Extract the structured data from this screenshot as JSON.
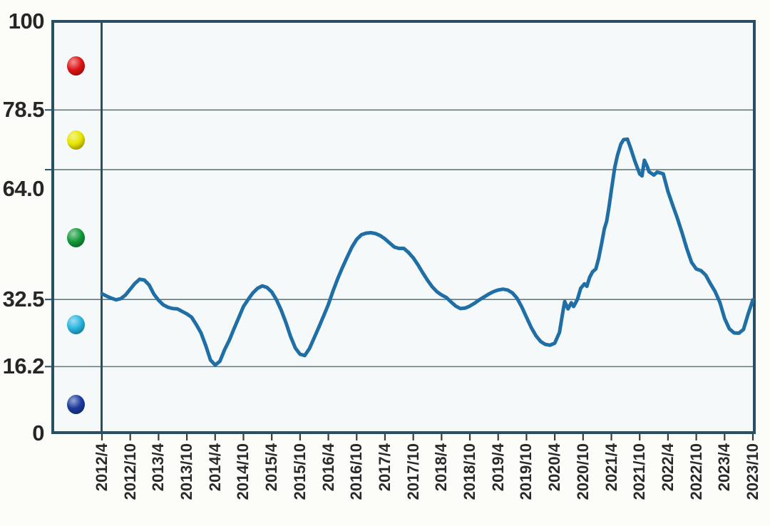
{
  "chart_data": {
    "type": "line",
    "title": "",
    "grid": true,
    "legend_position": "left-sidebar",
    "x_axis": {
      "unit": "months since 2012/4",
      "tick_months": [
        0,
        6,
        12,
        18,
        24,
        30,
        36,
        42,
        48,
        54,
        60,
        66,
        72,
        78,
        84,
        90,
        96,
        102,
        108,
        114,
        120,
        126,
        132,
        138
      ],
      "tick_labels": [
        "2012/4",
        "2012/10",
        "2013/4",
        "2013/10",
        "2014/4",
        "2014/10",
        "2015/4",
        "2015/10",
        "2016/4",
        "2016/10",
        "2017/4",
        "2017/10",
        "2018/4",
        "2018/10",
        "2019/4",
        "2019/10",
        "2020/4",
        "2020/10",
        "2021/4",
        "2021/10",
        "2022/4",
        "2022/10",
        "2023/4",
        "2023/10"
      ]
    },
    "y_axis": {
      "range": [
        0,
        100
      ],
      "tick_labels": [
        "100",
        "78.5",
        "64.0",
        "32.5",
        "16.2",
        "0"
      ],
      "tick_values": [
        100,
        78.5,
        64.0,
        32.5,
        16.2,
        0
      ],
      "gridline_values": [
        78.5,
        64.0,
        32.5,
        16.2
      ]
    },
    "series": [
      {
        "name": "index-line",
        "color": "#1f6fa6",
        "points": [
          [
            0,
            33.9
          ],
          [
            1,
            33.3
          ],
          [
            2,
            32.8
          ],
          [
            3,
            32.4
          ],
          [
            4,
            32.7
          ],
          [
            5,
            33.6
          ],
          [
            6,
            35.0
          ],
          [
            7,
            36.4
          ],
          [
            8,
            37.4
          ],
          [
            9,
            37.2
          ],
          [
            10,
            36.0
          ],
          [
            11,
            33.8
          ],
          [
            12,
            32.3
          ],
          [
            13,
            31.2
          ],
          [
            14,
            30.6
          ],
          [
            15,
            30.3
          ],
          [
            16,
            30.2
          ],
          [
            17,
            29.6
          ],
          [
            18,
            29.0
          ],
          [
            19,
            28.2
          ],
          [
            20,
            26.4
          ],
          [
            21,
            24.4
          ],
          [
            22,
            21.3
          ],
          [
            23,
            17.8
          ],
          [
            24,
            16.6
          ],
          [
            25,
            17.5
          ],
          [
            26,
            20.3
          ],
          [
            27,
            22.6
          ],
          [
            28,
            25.4
          ],
          [
            29,
            28.1
          ],
          [
            30,
            30.8
          ],
          [
            31,
            32.5
          ],
          [
            32,
            34.1
          ],
          [
            33,
            35.2
          ],
          [
            34,
            35.8
          ],
          [
            35,
            35.4
          ],
          [
            36,
            34.3
          ],
          [
            37,
            32.4
          ],
          [
            38,
            29.9
          ],
          [
            39,
            26.9
          ],
          [
            40,
            23.5
          ],
          [
            41,
            20.7
          ],
          [
            42,
            19.2
          ],
          [
            43,
            18.9
          ],
          [
            44,
            20.6
          ],
          [
            45,
            23.2
          ],
          [
            46,
            25.8
          ],
          [
            47,
            28.5
          ],
          [
            48,
            31.3
          ],
          [
            49,
            34.6
          ],
          [
            50,
            37.6
          ],
          [
            51,
            40.3
          ],
          [
            52,
            42.8
          ],
          [
            53,
            45.2
          ],
          [
            54,
            47.1
          ],
          [
            55,
            48.2
          ],
          [
            56,
            48.6
          ],
          [
            57,
            48.7
          ],
          [
            58,
            48.5
          ],
          [
            59,
            48.0
          ],
          [
            60,
            47.2
          ],
          [
            61,
            46.2
          ],
          [
            62,
            45.2
          ],
          [
            63,
            44.9
          ],
          [
            64,
            44.9
          ],
          [
            65,
            43.9
          ],
          [
            66,
            42.6
          ],
          [
            67,
            40.9
          ],
          [
            68,
            39.0
          ],
          [
            69,
            37.2
          ],
          [
            70,
            35.6
          ],
          [
            71,
            34.4
          ],
          [
            72,
            33.6
          ],
          [
            73,
            33.0
          ],
          [
            74,
            31.9
          ],
          [
            75,
            30.9
          ],
          [
            76,
            30.3
          ],
          [
            77,
            30.4
          ],
          [
            78,
            30.9
          ],
          [
            79,
            31.6
          ],
          [
            80,
            32.4
          ],
          [
            81,
            33.1
          ],
          [
            82,
            33.8
          ],
          [
            83,
            34.4
          ],
          [
            84,
            34.8
          ],
          [
            85,
            35.0
          ],
          [
            86,
            34.8
          ],
          [
            87,
            34.1
          ],
          [
            88,
            32.8
          ],
          [
            89,
            30.7
          ],
          [
            90,
            28.2
          ],
          [
            91,
            25.7
          ],
          [
            92,
            23.7
          ],
          [
            93,
            22.3
          ],
          [
            94,
            21.6
          ],
          [
            95,
            21.4
          ],
          [
            96,
            21.9
          ],
          [
            97,
            24.5
          ],
          [
            97.6,
            28.7
          ],
          [
            98.1,
            32.0
          ],
          [
            98.8,
            30.2
          ],
          [
            99.5,
            31.7
          ],
          [
            100,
            30.8
          ],
          [
            100.8,
            32.5
          ],
          [
            101.5,
            35.2
          ],
          [
            102.3,
            36.3
          ],
          [
            102.8,
            35.7
          ],
          [
            103.4,
            37.9
          ],
          [
            104,
            39.2
          ],
          [
            104.7,
            39.9
          ],
          [
            105.3,
            42.5
          ],
          [
            106,
            46.5
          ],
          [
            106.5,
            49.6
          ],
          [
            107,
            51.5
          ],
          [
            107.5,
            55.0
          ],
          [
            108,
            59.0
          ],
          [
            108.7,
            64.5
          ],
          [
            109.3,
            67.5
          ],
          [
            110,
            70.2
          ],
          [
            110.6,
            71.3
          ],
          [
            111.4,
            71.4
          ],
          [
            112,
            69.5
          ],
          [
            113,
            66.0
          ],
          [
            114,
            63.0
          ],
          [
            114.5,
            62.5
          ],
          [
            115,
            66.3
          ],
          [
            115.6,
            64.8
          ],
          [
            116,
            63.5
          ],
          [
            117,
            62.7
          ],
          [
            117.7,
            63.4
          ],
          [
            118.4,
            63.2
          ],
          [
            119,
            63.0
          ],
          [
            120,
            58.7
          ],
          [
            121,
            55.4
          ],
          [
            122,
            52.2
          ],
          [
            123,
            48.6
          ],
          [
            124,
            44.8
          ],
          [
            125,
            41.5
          ],
          [
            126,
            39.9
          ],
          [
            127,
            39.5
          ],
          [
            128,
            38.4
          ],
          [
            129,
            36.3
          ],
          [
            130,
            34.4
          ],
          [
            131,
            31.8
          ],
          [
            132,
            27.9
          ],
          [
            133,
            25.4
          ],
          [
            134,
            24.4
          ],
          [
            135,
            24.3
          ],
          [
            136,
            25.2
          ],
          [
            137,
            29.0
          ],
          [
            138,
            32.4
          ]
        ]
      }
    ],
    "sidebar_markers": [
      {
        "name": "red-ball",
        "color": "#e01414",
        "band": "above 78.5"
      },
      {
        "name": "yellow-ball",
        "color": "#e8e400",
        "band": "64.0 to 78.5"
      },
      {
        "name": "green-ball",
        "color": "#12993a",
        "band": "32.5 to 64.0"
      },
      {
        "name": "cyan-ball",
        "color": "#29b4e0",
        "band": "16.2 to 32.5"
      },
      {
        "name": "navy-ball",
        "color": "#1c3a9e",
        "band": "below 16.2"
      }
    ]
  },
  "colors": {
    "border": "#285062",
    "gridline": "#4e6266",
    "tick": "#3a3a3a",
    "label": "#262626",
    "plot_bg": "#f6f9fa",
    "page_bg": "#fcfcf9",
    "line": "#1f6fa6"
  }
}
